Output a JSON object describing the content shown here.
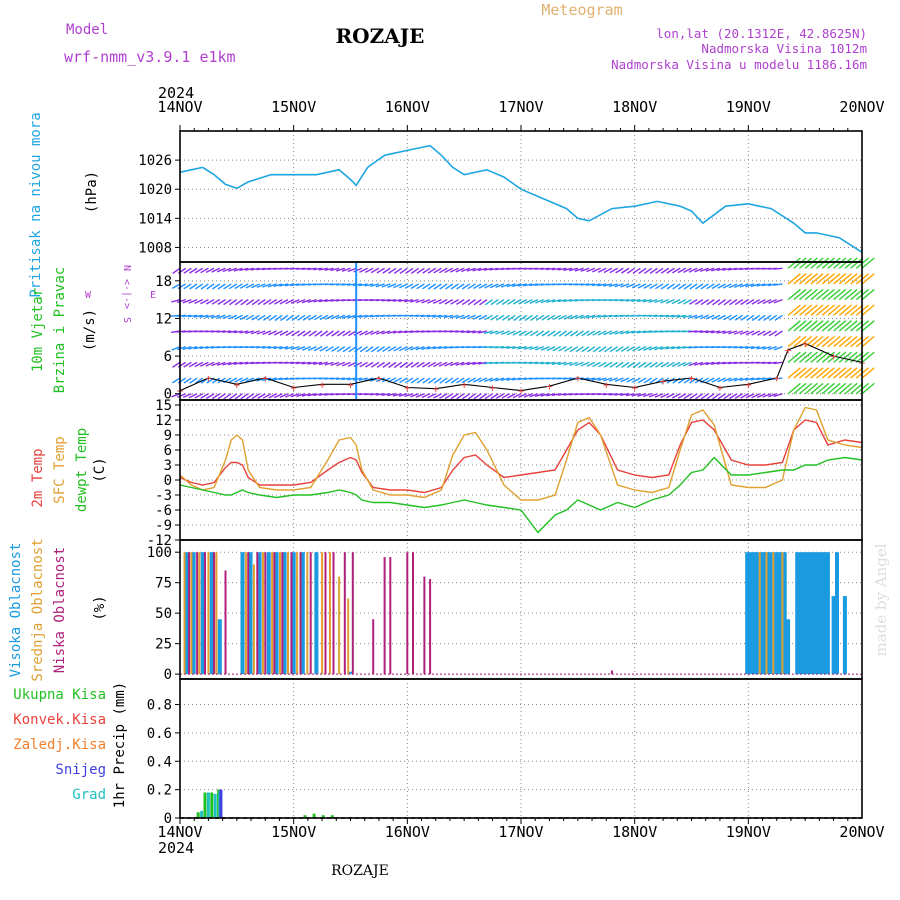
{
  "header": {
    "model_label": "Model",
    "model_name": "wrf-nmm_v3.9.1 e1km",
    "city": "ROZAJE",
    "meteogram": "Meteogram",
    "lonlat": "lon,lat (20.1312E, 42.8625N)",
    "alt1": "Nadmorska Visina 1012m",
    "alt2": "Nadmorska Visina u modelu 1186.16m",
    "year": "2024",
    "footer_city": "ROZAJE",
    "watermark": "made by Angel"
  },
  "colors": {
    "pressure": "#1fa6e0",
    "t2m": "#e8413c",
    "sfc": "#e0a030",
    "dewpt": "#22c022",
    "high_cloud": "#1a9ae0",
    "mid_cloud": "#e0a030",
    "low_cloud": "#b0207a",
    "magenta_text": "#b040d0",
    "wind_low": "#8a2be2",
    "wind_mid": "#1e90ff",
    "wind_high": "#32cd32",
    "wind_top": "#ffa500"
  },
  "panels": {
    "pressure": {
      "labels": [
        "Pritisak na nivou mora",
        "(hPa)"
      ]
    },
    "wind": {
      "labels": [
        "10m Vjetar",
        "Brzina i Pravac",
        "(m/s)"
      ],
      "compass": [
        "N",
        "W",
        "<-|->",
        "E",
        "S"
      ]
    },
    "temp": {
      "labels": [
        "2m Temp",
        "SFC Temp",
        "dewpt Temp",
        "(C)"
      ]
    },
    "cloud": {
      "labels": [
        "Visoka Oblacnost",
        "Srednja Oblacnost",
        "Niska Oblacnost",
        "(%)"
      ]
    },
    "precip": {
      "labels": [
        "Ukupna Kisa",
        "Konvek.Kisa",
        "Zaledj.Kisa",
        "Snijeg",
        "Grad",
        "1hr Precip (mm)"
      ]
    }
  },
  "chart_data": [
    {
      "type": "line",
      "title": "Pritisak na nivou mora",
      "ylabel": "(hPa)",
      "x_dates": [
        "14NOV",
        "15NOV",
        "16NOV",
        "17NOV",
        "18NOV",
        "19NOV",
        "20NOV"
      ],
      "ylim": [
        1005,
        1032
      ],
      "yticks": [
        "1008",
        "1014",
        "1020",
        "1026"
      ],
      "series": [
        {
          "name": "Pritisak na nivou mora",
          "x": [
            0,
            0.1,
            0.2,
            0.3,
            0.4,
            0.5,
            0.6,
            0.8,
            1.0,
            1.2,
            1.4,
            1.5,
            1.55,
            1.65,
            1.8,
            2.0,
            2.1,
            2.2,
            2.3,
            2.4,
            2.5,
            2.7,
            2.85,
            3.0,
            3.2,
            3.4,
            3.5,
            3.6,
            3.8,
            4.0,
            4.2,
            4.4,
            4.5,
            4.6,
            4.8,
            5.0,
            5.2,
            5.4,
            5.5,
            5.6,
            5.8,
            6.0
          ],
          "y": [
            1023.5,
            1024.0,
            1024.5,
            1023.0,
            1021.0,
            1020.2,
            1021.5,
            1023.0,
            1023.0,
            1023.0,
            1024.0,
            1022.0,
            1020.8,
            1024.5,
            1027.0,
            1028.0,
            1028.5,
            1029.0,
            1027.0,
            1024.5,
            1023.0,
            1024.0,
            1022.5,
            1020.0,
            1018.0,
            1016.0,
            1014.0,
            1013.5,
            1016.0,
            1016.5,
            1017.5,
            1016.5,
            1015.5,
            1013.0,
            1016.5,
            1017.0,
            1016.0,
            1013.0,
            1011.0,
            1011.0,
            1010.0,
            1007.0
          ]
        }
      ]
    },
    {
      "type": "scatter",
      "title": "10m Vjetar Brzina i Pravac",
      "ylabel": "(m/s)",
      "ylim": [
        -1,
        21
      ],
      "yticks": [
        "0",
        "6",
        "12",
        "18"
      ],
      "levels": [
        0,
        2.5,
        5,
        7.5,
        10,
        12.5,
        15,
        17.5,
        20
      ],
      "speed_series": {
        "name": "10m Vjetar",
        "x": [
          0,
          0.25,
          0.5,
          0.75,
          1.0,
          1.25,
          1.5,
          1.75,
          2.0,
          2.25,
          2.5,
          2.75,
          3.0,
          3.25,
          3.5,
          3.75,
          4.0,
          4.25,
          4.5,
          4.75,
          5.0,
          5.25,
          5.35,
          5.5,
          5.75,
          6.0
        ],
        "y": [
          0.5,
          2.5,
          1.5,
          2.5,
          1.0,
          1.5,
          1.5,
          2.5,
          1.0,
          0.8,
          1.5,
          1.0,
          0.5,
          1.2,
          2.5,
          1.5,
          1.0,
          2.0,
          2.5,
          1.0,
          1.5,
          2.5,
          7.0,
          8.0,
          6.0,
          5.0
        ]
      }
    },
    {
      "type": "line",
      "title": "2m Temp / SFC Temp / dewpt Temp",
      "ylabel": "(C)",
      "ylim": [
        -12,
        16
      ],
      "yticks": [
        "-12",
        "-9",
        "-6",
        "-3",
        "0",
        "3",
        "6",
        "9",
        "12",
        "15"
      ],
      "x": [
        0,
        0.1,
        0.2,
        0.3,
        0.4,
        0.45,
        0.5,
        0.55,
        0.6,
        0.7,
        0.85,
        1.0,
        1.15,
        1.3,
        1.4,
        1.5,
        1.55,
        1.6,
        1.7,
        1.85,
        2.0,
        2.15,
        2.3,
        2.4,
        2.5,
        2.6,
        2.7,
        2.85,
        3.0,
        3.15,
        3.3,
        3.4,
        3.5,
        3.6,
        3.7,
        3.85,
        4.0,
        4.15,
        4.3,
        4.4,
        4.5,
        4.6,
        4.7,
        4.85,
        5.0,
        5.15,
        5.3,
        5.4,
        5.5,
        5.6,
        5.7,
        5.85,
        6.0
      ],
      "series": [
        {
          "name": "2m Temp",
          "values": [
            0.5,
            -0.5,
            -1.0,
            -0.5,
            2.5,
            3.5,
            3.5,
            3.0,
            0.5,
            -1.0,
            -1.0,
            -1.0,
            -0.5,
            2.0,
            3.5,
            4.5,
            4.0,
            1.5,
            -1.5,
            -2.0,
            -2.0,
            -2.5,
            -1.5,
            2.0,
            4.5,
            5.0,
            3.0,
            0.5,
            1.0,
            1.5,
            2.0,
            6.0,
            10.0,
            11.5,
            9.0,
            2.0,
            1.0,
            0.5,
            1.0,
            7.0,
            11.5,
            12.0,
            10.0,
            4.0,
            3.0,
            3.0,
            3.5,
            10.0,
            12.0,
            11.5,
            7.0,
            8.0,
            7.5
          ]
        },
        {
          "name": "SFC Temp",
          "values": [
            1.0,
            -1.0,
            -2.0,
            -1.5,
            4.0,
            8.0,
            9.0,
            8.0,
            2.0,
            -1.5,
            -2.0,
            -2.0,
            -1.5,
            4.0,
            8.0,
            8.5,
            7.0,
            2.0,
            -2.0,
            -3.0,
            -3.0,
            -3.5,
            -2.0,
            5.0,
            9.0,
            9.5,
            6.0,
            -1.0,
            -4.0,
            -4.0,
            -3.0,
            4.0,
            11.5,
            12.5,
            9.0,
            -1.0,
            -2.0,
            -2.5,
            -1.5,
            6.0,
            13.0,
            14.0,
            11.0,
            -1.0,
            -1.5,
            -1.5,
            0.0,
            10.0,
            14.5,
            14.0,
            8.0,
            7.0,
            6.5
          ]
        },
        {
          "name": "dewpt Temp",
          "values": [
            -1.0,
            -1.5,
            -2.0,
            -2.5,
            -3.0,
            -3.0,
            -2.5,
            -2.0,
            -2.5,
            -3.0,
            -3.5,
            -3.0,
            -3.0,
            -2.5,
            -2.0,
            -2.5,
            -3.0,
            -4.0,
            -4.5,
            -4.5,
            -5.0,
            -5.5,
            -5.0,
            -4.5,
            -4.0,
            -4.5,
            -5.0,
            -5.5,
            -6.0,
            -10.5,
            -7.0,
            -6.0,
            -4.0,
            -5.0,
            -6.0,
            -4.5,
            -5.5,
            -4.0,
            -3.0,
            -1.0,
            1.5,
            2.0,
            4.5,
            1.0,
            1.0,
            1.5,
            2.0,
            2.0,
            3.0,
            3.0,
            4.0,
            4.5,
            4.0
          ]
        }
      ]
    },
    {
      "type": "bar",
      "title": "Visoka / Srednja / Niska Oblacnost",
      "ylabel": "(%)",
      "ylim": [
        -4,
        110
      ],
      "yticks": [
        "0",
        "25",
        "50",
        "75",
        "100"
      ],
      "series": [
        {
          "name": "Visoka Oblacnost",
          "x": [
            0.06,
            0.12,
            0.2,
            0.28,
            0.35,
            0.55,
            0.62,
            0.7,
            0.78,
            0.85,
            0.92,
            1.0,
            1.08,
            1.2,
            1.5,
            4.99,
            5.02,
            5.05,
            5.08,
            5.11,
            5.14,
            5.17,
            5.2,
            5.23,
            5.26,
            5.29,
            5.32,
            5.35,
            5.43,
            5.46,
            5.49,
            5.52,
            5.55,
            5.58,
            5.61,
            5.64,
            5.67,
            5.7,
            5.75,
            5.78,
            5.85
          ],
          "y": [
            100,
            100,
            100,
            100,
            45,
            100,
            100,
            100,
            100,
            100,
            100,
            100,
            100,
            100,
            2,
            100,
            100,
            100,
            100,
            100,
            100,
            100,
            100,
            100,
            100,
            100,
            100,
            45,
            100,
            100,
            100,
            100,
            100,
            100,
            100,
            100,
            100,
            100,
            64,
            100,
            64
          ]
        },
        {
          "name": "Srednja Oblacnost",
          "x": [
            0.04,
            0.1,
            0.17,
            0.25,
            0.32,
            0.58,
            0.65,
            0.73,
            0.81,
            0.88,
            0.95,
            1.03,
            1.12,
            1.25,
            1.32,
            1.4,
            1.48,
            5.1,
            5.16,
            5.22,
            5.3
          ],
          "y": [
            100,
            100,
            100,
            100,
            100,
            100,
            90,
            100,
            100,
            100,
            100,
            100,
            100,
            100,
            100,
            80,
            62,
            100,
            100,
            100,
            100
          ]
        },
        {
          "name": "Niska Oblacnost",
          "x": [
            0.08,
            0.15,
            0.22,
            0.3,
            0.4,
            0.6,
            0.68,
            0.75,
            0.83,
            0.9,
            0.98,
            1.06,
            1.15,
            1.28,
            1.35,
            1.45,
            1.52,
            1.7,
            1.8,
            1.85,
            2.0,
            2.05,
            2.15,
            2.2,
            3.8
          ],
          "y": [
            100,
            100,
            100,
            100,
            85,
            100,
            100,
            100,
            100,
            100,
            100,
            100,
            100,
            100,
            100,
            100,
            100,
            45,
            96,
            96,
            100,
            100,
            80,
            78,
            3
          ]
        }
      ]
    },
    {
      "type": "bar",
      "title": "1hr Precip",
      "ylabel": "1hr Precip (mm)",
      "ylim": [
        0,
        0.98
      ],
      "yticks": [
        "0",
        "0.2",
        "0.4",
        "0.6",
        "0.8"
      ],
      "series": [
        {
          "name": "Ukupna Kisa",
          "x": [
            0.16,
            0.22,
            0.28,
            0.34,
            1.1,
            1.18,
            1.26,
            1.34
          ],
          "y": [
            0.04,
            0.18,
            0.18,
            0.2,
            0.02,
            0.03,
            0.02,
            0.02
          ]
        },
        {
          "name": "Grad",
          "x": [
            0.19,
            0.25,
            0.31,
            0.35
          ],
          "y": [
            0.05,
            0.18,
            0.17,
            0.19
          ]
        },
        {
          "name": "Snijeg",
          "x": [
            0.36
          ],
          "y": [
            0.2
          ]
        }
      ]
    }
  ]
}
